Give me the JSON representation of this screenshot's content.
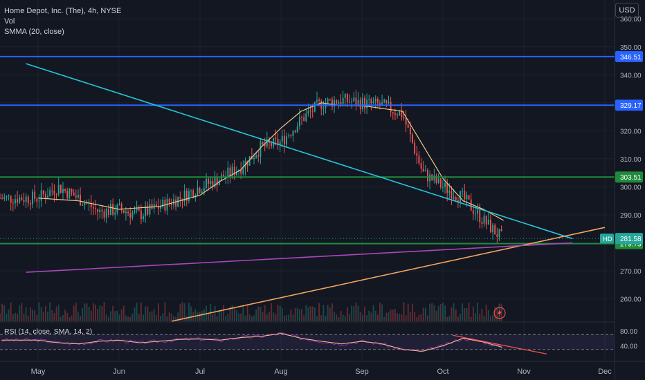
{
  "header": {
    "symbol_line": "Home Depot, Inc. (The), 4h, NYSE",
    "vol_label": "Vol",
    "smma_label": "SMMA (20, close)",
    "currency_button": "USD"
  },
  "colors": {
    "up": "#26a69a",
    "down": "#ef5350",
    "smma": "#f0c987",
    "blue_level": "#2962ff",
    "green_level": "#1f8a3b",
    "cyan_trend": "#26c6da",
    "orange_trend": "#f4a460",
    "purple_trend": "#ab47bc",
    "rsi_line": "#9c27b0",
    "rsi_ma": "#f0c987"
  },
  "chart_data": {
    "type": "candlestick",
    "title": "Home Depot, Inc. (The), 4h, NYSE",
    "ylim": [
      252,
      365
    ],
    "y_ticks": [
      260,
      270,
      280,
      290,
      300,
      310,
      320,
      330,
      340,
      350,
      360
    ],
    "y_tick_labels": [
      "260.00",
      "270.00",
      "280.00",
      "290.00",
      "300.00",
      "310.00",
      "320.00",
      "330.00",
      "340.00",
      "350.00",
      "360.00"
    ],
    "x_labels": [
      "May",
      "Jun",
      "Jul",
      "Aug",
      "Sep",
      "Oct",
      "Nov",
      "Dec"
    ],
    "price_path_months": [
      0,
      0.25,
      0.5,
      0.75,
      1.0,
      1.25,
      1.5,
      1.75,
      2.0,
      2.25,
      2.5,
      2.75,
      3.0,
      3.25,
      3.5,
      3.75,
      4.0,
      4.25,
      4.5,
      4.75,
      5.0,
      5.25,
      5.5,
      5.75
    ],
    "price_path": [
      296,
      300,
      296,
      291,
      292,
      290,
      293,
      296,
      300,
      303,
      307,
      314,
      316,
      324,
      330,
      331,
      330,
      329,
      326,
      305,
      300,
      296,
      288,
      281
    ],
    "smma_months": [
      0,
      0.5,
      1.0,
      1.5,
      2.0,
      2.25,
      2.5,
      2.75,
      3.0,
      3.25,
      3.5,
      3.75,
      4.0,
      4.25,
      4.5,
      4.75,
      5.0,
      5.25,
      5.5,
      5.75
    ],
    "smma": [
      296,
      295,
      292,
      293,
      297,
      302,
      306,
      314,
      321,
      327,
      330,
      329,
      329,
      328,
      327,
      315,
      303,
      295,
      292,
      288
    ],
    "levels": [
      {
        "value": 346.51,
        "label": "346.51",
        "kind": "resistance"
      },
      {
        "value": 329.17,
        "label": "329.17",
        "kind": "resistance"
      },
      {
        "value": 303.51,
        "label": "303.51",
        "kind": "support"
      },
      {
        "value": 279.73,
        "label": "279.73",
        "kind": "support"
      }
    ],
    "last_price": {
      "value": 281.58,
      "label": "281.58",
      "ticker": "HD"
    },
    "trendlines": [
      {
        "name": "cyan",
        "from": [
          -0.15,
          344
        ],
        "to": [
          6.6,
          281.5
        ]
      },
      {
        "name": "orange",
        "from": [
          1.65,
          252
        ],
        "to": [
          7.0,
          285.5
        ]
      },
      {
        "name": "purple",
        "from": [
          -0.15,
          269.5
        ],
        "to": [
          6.6,
          280
        ]
      }
    ],
    "rsi": {
      "label": "RSI (14, close, SMA, 14, 2)",
      "ylim": [
        0,
        100
      ],
      "ticks": [
        80,
        40
      ],
      "tick_labels": [
        "80.00",
        "40.00"
      ],
      "band_upper": 70,
      "band_lower": 30,
      "path_months": [
        0,
        0.25,
        0.5,
        0.75,
        1.0,
        1.25,
        1.5,
        1.75,
        2.0,
        2.25,
        2.5,
        2.75,
        3.0,
        3.25,
        3.5,
        3.75,
        4.0,
        4.25,
        4.5,
        4.75,
        5.0,
        5.25,
        5.5,
        5.75
      ],
      "path": [
        55,
        48,
        45,
        52,
        55,
        48,
        52,
        57,
        58,
        55,
        62,
        65,
        73,
        60,
        52,
        45,
        52,
        45,
        30,
        25,
        40,
        60,
        50,
        35
      ],
      "divergence_line": {
        "from": [
          5.12,
          68
        ],
        "to": [
          6.28,
          18
        ]
      }
    },
    "volume_profile": "per-candle bars at base of price pane"
  }
}
